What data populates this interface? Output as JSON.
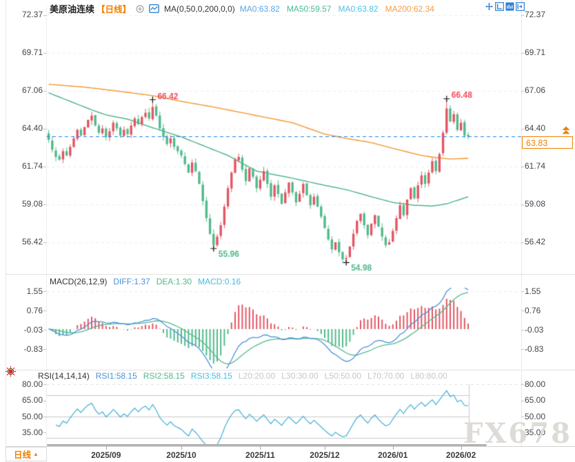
{
  "header": {
    "symbol": "美原油连续",
    "period_tag": "【日线】",
    "ma_formula": "MA(0,50,0,200,0,0)",
    "ma_values": [
      {
        "text": "MA0:63.82",
        "color": "#56a6e6"
      },
      {
        "text": "MA50:59.57",
        "color": "#49ba8f"
      },
      {
        "text": "MA0:63.82",
        "color": "#49c2e8"
      },
      {
        "text": "MA200:62.34",
        "color": "#f59d42"
      }
    ]
  },
  "toolbar": {
    "icons": [
      "move-icon",
      "axis-range-icon",
      "chart-style-icon",
      "pan-right-icon"
    ]
  },
  "icons": {
    "add_indicator": "circle-plus",
    "chart_type": "mini-line-chart",
    "live_blink": "red-sun",
    "price_alert": "double-up-arrows",
    "period_dropdown": "up-triangle"
  },
  "price_axis": {
    "ticks": [
      72.37,
      69.71,
      67.06,
      64.4,
      61.74,
      59.08,
      56.42
    ]
  },
  "current_price": "63.83",
  "macd_panel": {
    "title": "MACD(26,12,9)",
    "values": [
      {
        "text": "DIFF:1.37",
        "color": "#4a90d9"
      },
      {
        "text": "DEA:1.30",
        "color": "#50b88a"
      },
      {
        "text": "MACD:0.16",
        "color": "#45bce0"
      }
    ],
    "ticks": [
      1.55,
      0.76,
      -0.03,
      -0.83
    ]
  },
  "rsi_panel": {
    "title": "RSI(14,14,14)",
    "values": [
      {
        "text": "RSI1:58.15",
        "color": "#4a90d9"
      },
      {
        "text": "RSI2:58.15",
        "color": "#50b88a"
      },
      {
        "text": "RSI3:58.15",
        "color": "#45bce0"
      }
    ],
    "levels_text": [
      "L20:20.00",
      "L30:30.00",
      "L50:50.00",
      "L70:70.00",
      "L80:80.00"
    ],
    "ticks": [
      80.0,
      65.0,
      50.0,
      35.0
    ],
    "level_lines": [
      80,
      70,
      50,
      30
    ]
  },
  "time_axis": {
    "period_selector": "日线",
    "months": [
      {
        "label": "2025/09",
        "index": 16
      },
      {
        "label": "2025/10",
        "index": 37
      },
      {
        "label": "2025/11",
        "index": 59
      },
      {
        "label": "2025/12",
        "index": 77
      },
      {
        "label": "2026/01",
        "index": 96
      },
      {
        "label": "2026/02",
        "index": 115
      }
    ]
  },
  "watermark": "FX678",
  "chart_data": {
    "type": "candlestick",
    "title": "美原油连续 日线",
    "ylim": [
      54.2,
      72.9
    ],
    "price_ticks": [
      72.37,
      69.71,
      67.06,
      64.4,
      61.74,
      59.08,
      56.42
    ],
    "last_price": 63.83,
    "closes": [
      63.6,
      62.9,
      62.4,
      62.2,
      62.8,
      62.5,
      63.1,
      63.7,
      64.3,
      63.9,
      64.5,
      65.0,
      65.3,
      64.6,
      64.1,
      64.4,
      63.8,
      64.2,
      64.8,
      64.4,
      63.9,
      64.3,
      64.0,
      64.6,
      65.1,
      64.7,
      65.2,
      65.5,
      65.1,
      65.9,
      65.3,
      64.4,
      63.8,
      63.3,
      63.7,
      63.1,
      62.8,
      62.5,
      61.9,
      61.3,
      62.0,
      61.4,
      60.5,
      59.3,
      58.1,
      57.0,
      56.2,
      56.8,
      57.6,
      58.9,
      60.2,
      61.3,
      62.2,
      62.4,
      61.5,
      60.7,
      61.6,
      61.0,
      60.2,
      60.8,
      61.4,
      60.5,
      59.6,
      60.4,
      59.8,
      59.1,
      59.9,
      60.6,
      59.9,
      59.2,
      59.8,
      60.5,
      59.7,
      59.0,
      59.6,
      58.9,
      58.2,
      57.4,
      56.6,
      55.9,
      56.4,
      55.7,
      55.2,
      55.3,
      56.1,
      57.0,
      57.9,
      58.4,
      57.6,
      56.9,
      57.7,
      58.3,
      57.5,
      56.8,
      56.2,
      56.4,
      57.2,
      58.1,
      59.0,
      58.3,
      59.4,
      60.2,
      59.5,
      60.4,
      61.1,
      60.5,
      61.3,
      62.1,
      61.4,
      62.6,
      64.1,
      65.8,
      64.9,
      65.4,
      64.3,
      64.8,
      63.9,
      63.83
    ],
    "annotations": [
      {
        "index": 29,
        "price": 66.42,
        "text": "66.42",
        "kind": "high",
        "color": "#ee4d5f"
      },
      {
        "index": 111,
        "price": 66.48,
        "text": "66.48",
        "kind": "high",
        "color": "#ee4d5f"
      },
      {
        "index": 46,
        "price": 55.96,
        "text": "55.96",
        "kind": "low",
        "color": "#4fba8b"
      },
      {
        "index": 83,
        "price": 54.98,
        "text": "54.98",
        "kind": "low",
        "color": "#4fba8b"
      }
    ],
    "ma50_anchors": [
      [
        0,
        66.9
      ],
      [
        6,
        66.3
      ],
      [
        12,
        65.7
      ],
      [
        16,
        65.35
      ],
      [
        22,
        65.05
      ],
      [
        29,
        64.45
      ],
      [
        37,
        63.8
      ],
      [
        44,
        63.1
      ],
      [
        50,
        62.5
      ],
      [
        58,
        61.4
      ],
      [
        68,
        60.9
      ],
      [
        77,
        60.4
      ],
      [
        83,
        60.1
      ],
      [
        90,
        59.6
      ],
      [
        96,
        59.2
      ],
      [
        102,
        59.0
      ],
      [
        107,
        58.95
      ],
      [
        111,
        59.1
      ],
      [
        114,
        59.35
      ],
      [
        117,
        59.6
      ]
    ],
    "ma200_anchors": [
      [
        0,
        67.5
      ],
      [
        10,
        67.3
      ],
      [
        20,
        67.0
      ],
      [
        29,
        66.7
      ],
      [
        37,
        66.3
      ],
      [
        46,
        65.9
      ],
      [
        58,
        65.3
      ],
      [
        68,
        64.8
      ],
      [
        77,
        64.0
      ],
      [
        83,
        63.7
      ],
      [
        90,
        63.4
      ],
      [
        96,
        63.0
      ],
      [
        100,
        62.75
      ],
      [
        104,
        62.5
      ],
      [
        108,
        62.35
      ],
      [
        112,
        62.25
      ],
      [
        117,
        62.3
      ]
    ],
    "indicators": {
      "macd_params": "26,12,9",
      "rsi_params": "14,14,14",
      "diff": 1.37,
      "dea": 1.3,
      "macd": 0.16,
      "rsi": 58.15
    },
    "colors": {
      "up": "#e25562",
      "down": "#4fba8b",
      "ma50": "#4fb98a",
      "ma200": "#f3a044",
      "diff_line": "#4a90d9",
      "dea_line": "#50b88a",
      "rsi_line": "#4ab4d8",
      "last_price_line": "#1e7ee6",
      "price_box": "#f08000",
      "grid": "#ececec"
    }
  }
}
